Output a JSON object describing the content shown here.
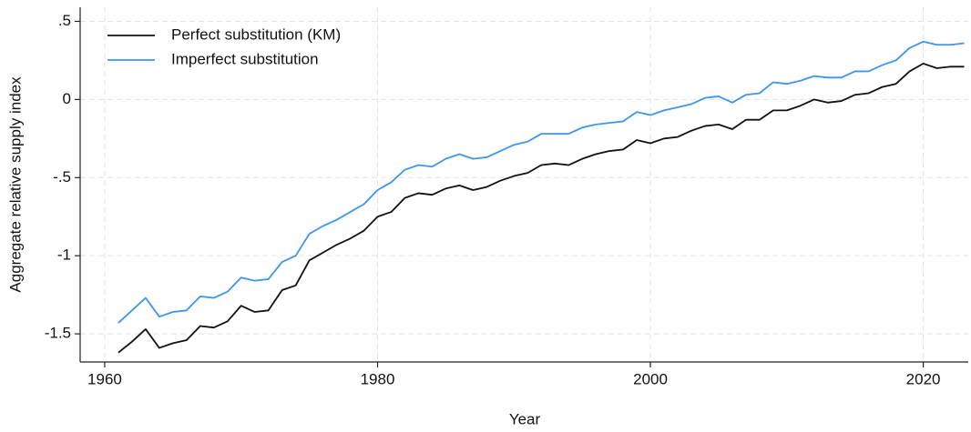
{
  "chart_data": {
    "type": "line",
    "xlabel": "Year",
    "ylabel": "Aggregate relative supply index",
    "x": [
      1961,
      1962,
      1963,
      1964,
      1965,
      1966,
      1967,
      1968,
      1969,
      1970,
      1971,
      1972,
      1973,
      1974,
      1975,
      1976,
      1977,
      1978,
      1979,
      1980,
      1981,
      1982,
      1983,
      1984,
      1985,
      1986,
      1987,
      1988,
      1989,
      1990,
      1991,
      1992,
      1993,
      1994,
      1995,
      1996,
      1997,
      1998,
      1999,
      2000,
      2001,
      2002,
      2003,
      2004,
      2005,
      2006,
      2007,
      2008,
      2009,
      2010,
      2011,
      2012,
      2013,
      2014,
      2015,
      2016,
      2017,
      2018,
      2019,
      2020,
      2021,
      2022,
      2023
    ],
    "series": [
      {
        "name": "Perfect substitution (KM)",
        "color": "#111111",
        "values": [
          -1.62,
          -1.55,
          -1.47,
          -1.59,
          -1.56,
          -1.54,
          -1.45,
          -1.46,
          -1.42,
          -1.32,
          -1.36,
          -1.35,
          -1.22,
          -1.19,
          -1.03,
          -0.98,
          -0.93,
          -0.89,
          -0.84,
          -0.75,
          -0.72,
          -0.63,
          -0.6,
          -0.61,
          -0.57,
          -0.55,
          -0.58,
          -0.56,
          -0.52,
          -0.49,
          -0.47,
          -0.42,
          -0.41,
          -0.42,
          -0.38,
          -0.35,
          -0.33,
          -0.32,
          -0.26,
          -0.28,
          -0.25,
          -0.24,
          -0.2,
          -0.17,
          -0.16,
          -0.19,
          -0.13,
          -0.13,
          -0.07,
          -0.07,
          -0.04,
          0.0,
          -0.02,
          -0.01,
          0.03,
          0.04,
          0.08,
          0.1,
          0.18,
          0.23,
          0.2,
          0.21,
          0.21
        ]
      },
      {
        "name": "Imperfect substitution",
        "color": "#3d95f0",
        "values": [
          -1.43,
          -1.35,
          -1.27,
          -1.39,
          -1.36,
          -1.35,
          -1.26,
          -1.27,
          -1.23,
          -1.14,
          -1.16,
          -1.15,
          -1.04,
          -1.0,
          -0.86,
          -0.81,
          -0.77,
          -0.72,
          -0.67,
          -0.58,
          -0.53,
          -0.45,
          -0.42,
          -0.43,
          -0.38,
          -0.35,
          -0.38,
          -0.37,
          -0.33,
          -0.29,
          -0.27,
          -0.22,
          -0.22,
          -0.22,
          -0.18,
          -0.16,
          -0.15,
          -0.14,
          -0.08,
          -0.1,
          -0.07,
          -0.05,
          -0.03,
          0.01,
          0.02,
          -0.02,
          0.03,
          0.04,
          0.11,
          0.1,
          0.12,
          0.15,
          0.14,
          0.14,
          0.18,
          0.18,
          0.22,
          0.25,
          0.33,
          0.37,
          0.35,
          0.35,
          0.36
        ]
      }
    ],
    "xlim": [
      1958.2,
      2023.3
    ],
    "ylim": [
      -1.68,
      0.59
    ],
    "xticks": [
      1960,
      1980,
      2000,
      2020
    ],
    "yticks": [
      {
        "value": 0.5,
        "label": ".5"
      },
      0,
      {
        "value": -0.5,
        "label": "-.5"
      },
      -1,
      -1.5
    ],
    "grid": true,
    "legend": "top-left"
  }
}
